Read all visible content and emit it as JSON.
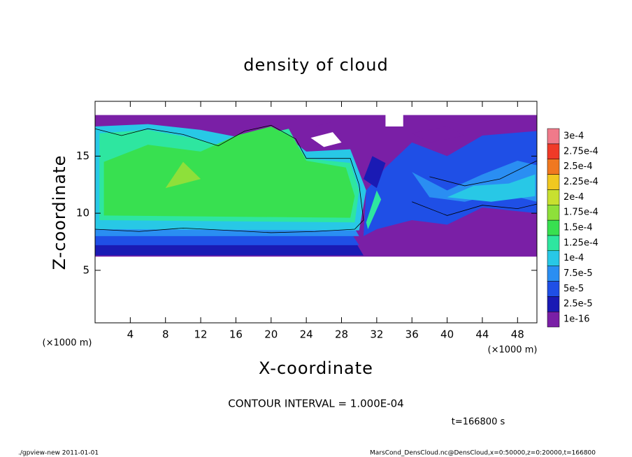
{
  "chart_data": {
    "type": "contour",
    "title": "density of cloud",
    "x_label": "X-coordinate",
    "y_label": "Z-coordinate",
    "x_unit": "(×1000 m)",
    "y_unit": "(×1000 m)",
    "contour_note": "CONTOUR INTERVAL = 1.000E-04",
    "time_note": "t=166800 s",
    "footer_left": "./gpview-new   2011-01-01",
    "footer_right": "MarsCond_DensCloud.nc@DensCloud,x=0:50000,z=0:20000,t=166800",
    "xlim": [
      0,
      50.2
    ],
    "ylim": [
      0.4,
      19.8
    ],
    "xticks": [
      4,
      8,
      12,
      16,
      20,
      24,
      28,
      32,
      36,
      40,
      44,
      48
    ],
    "yticks": [
      5,
      10,
      15
    ],
    "colorbar": {
      "levels": [
        {
          "value": 1e-16,
          "label": "1e-16"
        },
        {
          "value": 2.5e-05,
          "label": "2.5e-5"
        },
        {
          "value": 5e-05,
          "label": "5e-5"
        },
        {
          "value": 7.5e-05,
          "label": "7.5e-5"
        },
        {
          "value": 0.0001,
          "label": "1e-4"
        },
        {
          "value": 0.000125,
          "label": "1.25e-4"
        },
        {
          "value": 0.00015,
          "label": "1.5e-4"
        },
        {
          "value": 0.000175,
          "label": "1.75e-4"
        },
        {
          "value": 0.0002,
          "label": "2e-4"
        },
        {
          "value": 0.000225,
          "label": "2.25e-4"
        },
        {
          "value": 0.00025,
          "label": "2.5e-4"
        },
        {
          "value": 0.000275,
          "label": "2.75e-4"
        },
        {
          "value": 0.0003,
          "label": "3e-4"
        }
      ],
      "colors": [
        "#7a1fa6",
        "#1a1ab4",
        "#1f4fe6",
        "#2a8ef2",
        "#28c8e6",
        "#2ee6a0",
        "#38e050",
        "#8ee03a",
        "#c8e030",
        "#f0c820",
        "#f07820",
        "#f03a28",
        "#f07a8a"
      ]
    }
  }
}
